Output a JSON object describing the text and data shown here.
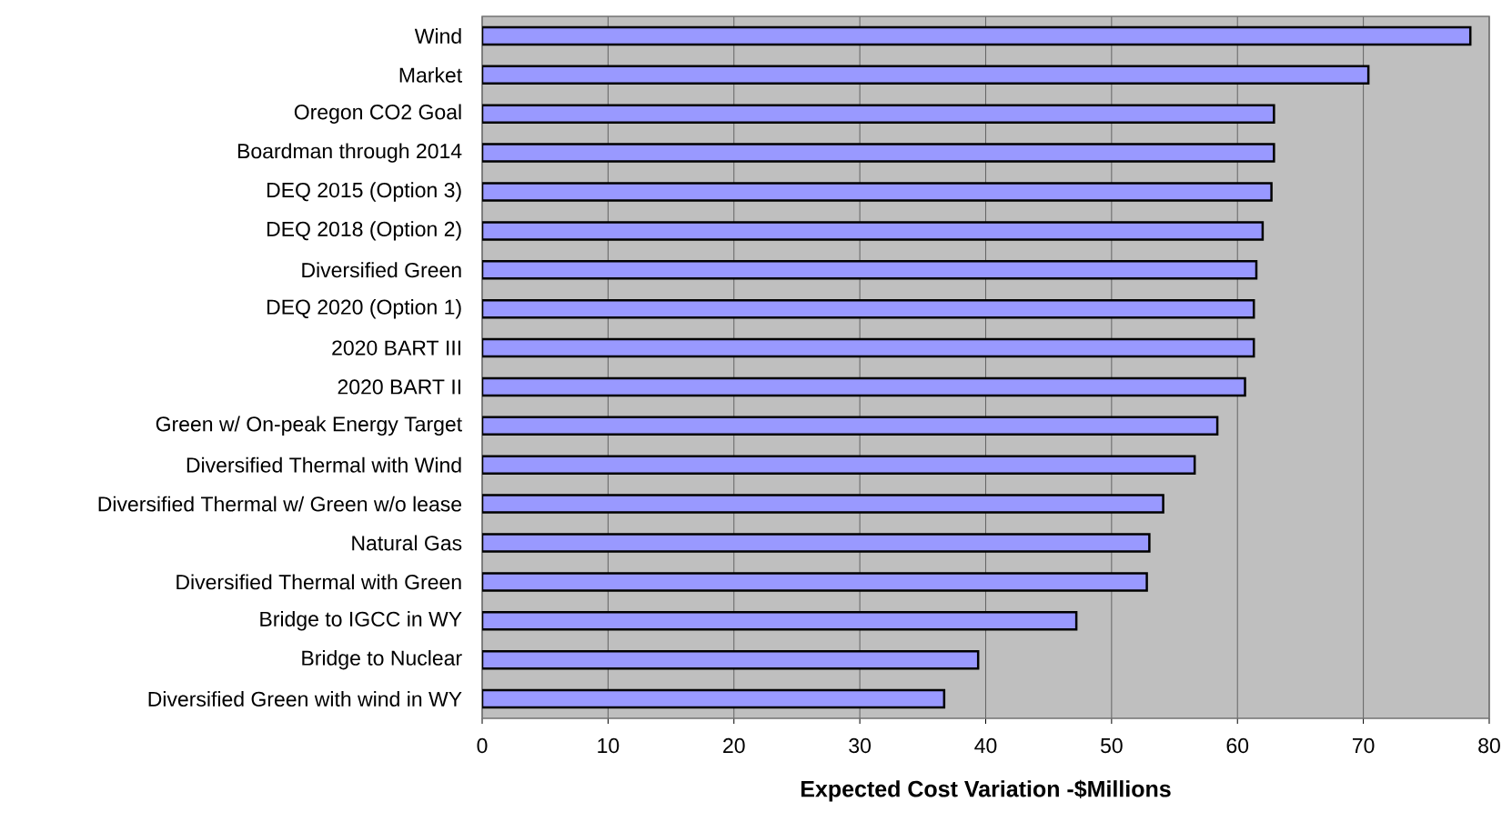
{
  "chart_data": {
    "type": "bar",
    "orientation": "horizontal",
    "xlabel": "Expected Cost Variation -$Millions",
    "categories": [
      "Wind",
      "Market",
      "Oregon CO2 Goal",
      "Boardman through 2014",
      "DEQ 2015 (Option 3)",
      "DEQ 2018 (Option 2)",
      "Diversified Green",
      "DEQ 2020 (Option 1)",
      "2020 BART III",
      "2020 BART II",
      "Green w/ On-peak Energy Target",
      "Diversified Thermal with Wind",
      "Diversified Thermal w/ Green w/o lease",
      "Natural Gas",
      "Diversified Thermal with Green",
      "Bridge to IGCC in WY",
      "Bridge to Nuclear",
      "Diversified Green with wind in WY"
    ],
    "values": [
      78.5,
      70.4,
      62.9,
      62.9,
      62.7,
      62.0,
      61.5,
      61.3,
      61.3,
      60.6,
      58.4,
      56.6,
      54.1,
      53.0,
      52.8,
      47.2,
      39.4,
      36.7
    ],
    "color": "#9999ff",
    "xlim": [
      0,
      80
    ],
    "xticks": [
      0,
      10,
      20,
      30,
      40,
      50,
      60,
      70,
      80
    ],
    "grid": "x"
  }
}
